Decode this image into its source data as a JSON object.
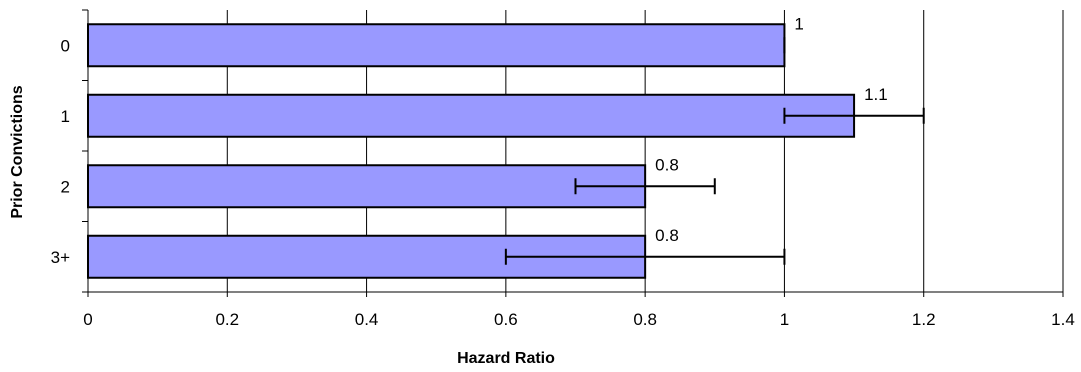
{
  "chart_data": {
    "type": "bar",
    "orientation": "horizontal",
    "categories": [
      "0",
      "1",
      "2",
      "3+"
    ],
    "values": [
      1,
      1.1,
      0.8,
      0.8
    ],
    "data_labels": [
      "1",
      "1.1",
      "0.8",
      "0.8"
    ],
    "error_bars": [
      {
        "low": 1.0,
        "high": 1.0
      },
      {
        "low": 1.0,
        "high": 1.2
      },
      {
        "low": 0.7,
        "high": 0.9
      },
      {
        "low": 0.6,
        "high": 1.0
      }
    ],
    "xlabel": "Hazard Ratio",
    "ylabel": "Prior Convictions",
    "xlim": [
      0,
      1.4
    ],
    "x_ticks": [
      0,
      0.2,
      0.4,
      0.6,
      0.8,
      1,
      1.2,
      1.4
    ],
    "x_tick_labels": [
      "0",
      "0.2",
      "0.4",
      "0.6",
      "0.8",
      "1",
      "1.2",
      "1.4"
    ],
    "grid": "vertical",
    "colors": {
      "bar_fill": "#9999ff",
      "bar_stroke": "#000000",
      "grid": "#000000",
      "error_bar": "#000000"
    }
  }
}
